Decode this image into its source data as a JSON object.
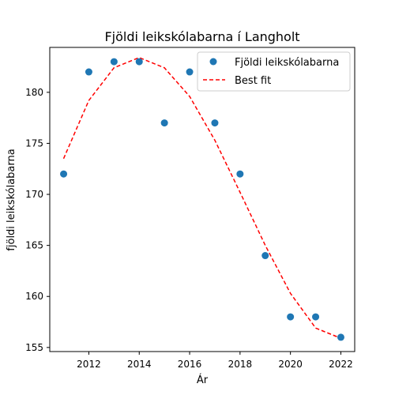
{
  "chart_data": {
    "type": "scatter",
    "title": "Fjöldi leikskólabarna í Langholt",
    "xlabel": "Ár",
    "ylabel": "fjöldi leikskólabarna",
    "xlim": [
      2010.45,
      2022.55
    ],
    "ylim": [
      154.6,
      184.4
    ],
    "xticks": [
      2012,
      2014,
      2016,
      2018,
      2020,
      2022
    ],
    "yticks": [
      155,
      160,
      165,
      170,
      175,
      180
    ],
    "grid": false,
    "legend_position": "top-right",
    "series": [
      {
        "name": "Fjöldi leikskólabarna",
        "type": "scatter",
        "color": "#1f77b4",
        "x": [
          2011,
          2012,
          2013,
          2014,
          2015,
          2016,
          2017,
          2018,
          2019,
          2020,
          2021,
          2022
        ],
        "values": [
          172,
          182,
          183,
          183,
          177,
          182,
          177,
          172,
          164,
          158,
          158,
          156
        ]
      },
      {
        "name": "Best fit",
        "type": "line",
        "style": "dashed",
        "color": "#ff0000",
        "x": [
          2011,
          2012,
          2013,
          2014,
          2015,
          2016,
          2017,
          2018,
          2019,
          2020,
          2021,
          2022
        ],
        "values": [
          173.5,
          179.2,
          182.4,
          183.4,
          182.4,
          179.6,
          175.3,
          170.2,
          165.0,
          160.3,
          156.9,
          155.9
        ]
      }
    ]
  }
}
